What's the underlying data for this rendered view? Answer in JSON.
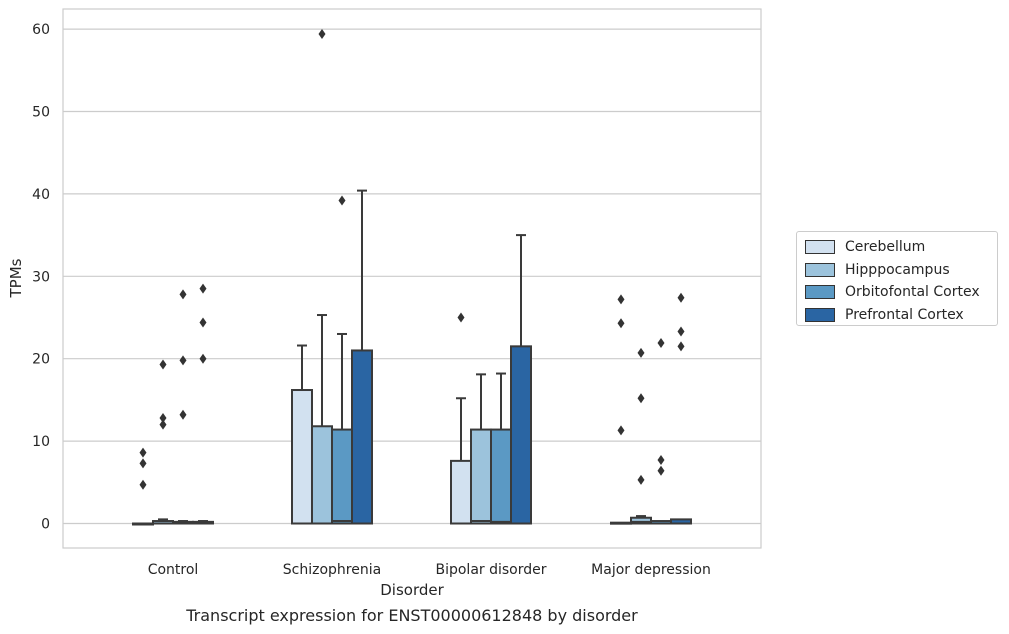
{
  "chart_data": {
    "type": "box",
    "caption": "Transcript expression for ENST00000612848 by disorder",
    "xlabel": "Disorder",
    "ylabel": "TPMs",
    "ylim": [
      -3,
      62.5
    ],
    "yticks": [
      0,
      10,
      20,
      30,
      40,
      50,
      60
    ],
    "grid": "horizontal",
    "legend_position": "right",
    "categories": [
      "Control",
      "Schizophrenia",
      "Bipolar disorder",
      "Major depression"
    ],
    "series": [
      {
        "name": "Cerebellum",
        "color": "#d2e1f0",
        "boxes": [
          {
            "q1": 0,
            "median": 0,
            "q3": 0,
            "whisker_low": 0,
            "whisker_high": 0,
            "outliers": [
              4.7,
              7.3,
              8.6
            ]
          },
          {
            "q1": 0,
            "median": 0,
            "q3": 16.2,
            "whisker_low": 0,
            "whisker_high": 21.6,
            "outliers": []
          },
          {
            "q1": 0,
            "median": 0,
            "q3": 7.6,
            "whisker_low": 0,
            "whisker_high": 15.2,
            "outliers": [
              25.0
            ]
          },
          {
            "q1": 0,
            "median": 0,
            "q3": 0.1,
            "whisker_low": 0,
            "whisker_high": 0.1,
            "outliers": [
              11.3,
              24.3,
              27.2
            ]
          }
        ]
      },
      {
        "name": "Hipppocampus",
        "color": "#9cc3dc",
        "boxes": [
          {
            "q1": 0,
            "median": 0,
            "q3": 0.3,
            "whisker_low": 0,
            "whisker_high": 0.5,
            "outliers": [
              12.0,
              12.8,
              19.3
            ]
          },
          {
            "q1": 0,
            "median": 0,
            "q3": 11.8,
            "whisker_low": 0,
            "whisker_high": 25.3,
            "outliers": [
              59.4
            ]
          },
          {
            "q1": 0,
            "median": 0.3,
            "q3": 11.4,
            "whisker_low": 0,
            "whisker_high": 18.1,
            "outliers": []
          },
          {
            "q1": 0,
            "median": 0.2,
            "q3": 0.7,
            "whisker_low": 0,
            "whisker_high": 0.9,
            "outliers": [
              5.3,
              15.2,
              20.7
            ]
          }
        ]
      },
      {
        "name": "Orbitofontal Cortex",
        "color": "#5b99c4",
        "boxes": [
          {
            "q1": 0,
            "median": 0,
            "q3": 0.2,
            "whisker_low": 0,
            "whisker_high": 0.3,
            "outliers": [
              13.2,
              19.8,
              27.8
            ]
          },
          {
            "q1": 0,
            "median": 0.3,
            "q3": 11.4,
            "whisker_low": 0,
            "whisker_high": 23.0,
            "outliers": [
              39.2
            ]
          },
          {
            "q1": 0,
            "median": 0.2,
            "q3": 11.4,
            "whisker_low": 0,
            "whisker_high": 18.2,
            "outliers": []
          },
          {
            "q1": 0,
            "median": 0,
            "q3": 0.3,
            "whisker_low": 0,
            "whisker_high": 0.3,
            "outliers": [
              6.4,
              7.7,
              21.9
            ]
          }
        ]
      },
      {
        "name": "Prefrontal Cortex",
        "color": "#2a65a3",
        "boxes": [
          {
            "q1": 0,
            "median": 0,
            "q3": 0.2,
            "whisker_low": 0,
            "whisker_high": 0.3,
            "outliers": [
              20.0,
              24.4,
              28.5
            ]
          },
          {
            "q1": 0,
            "median": 0,
            "q3": 21.0,
            "whisker_low": 0,
            "whisker_high": 40.4,
            "outliers": []
          },
          {
            "q1": 0,
            "median": 0,
            "q3": 21.5,
            "whisker_low": 0,
            "whisker_high": 35.0,
            "outliers": []
          },
          {
            "q1": 0,
            "median": 0,
            "q3": 0.5,
            "whisker_low": 0,
            "whisker_high": 0.5,
            "outliers": [
              21.5,
              23.3,
              27.4
            ]
          }
        ]
      }
    ]
  }
}
